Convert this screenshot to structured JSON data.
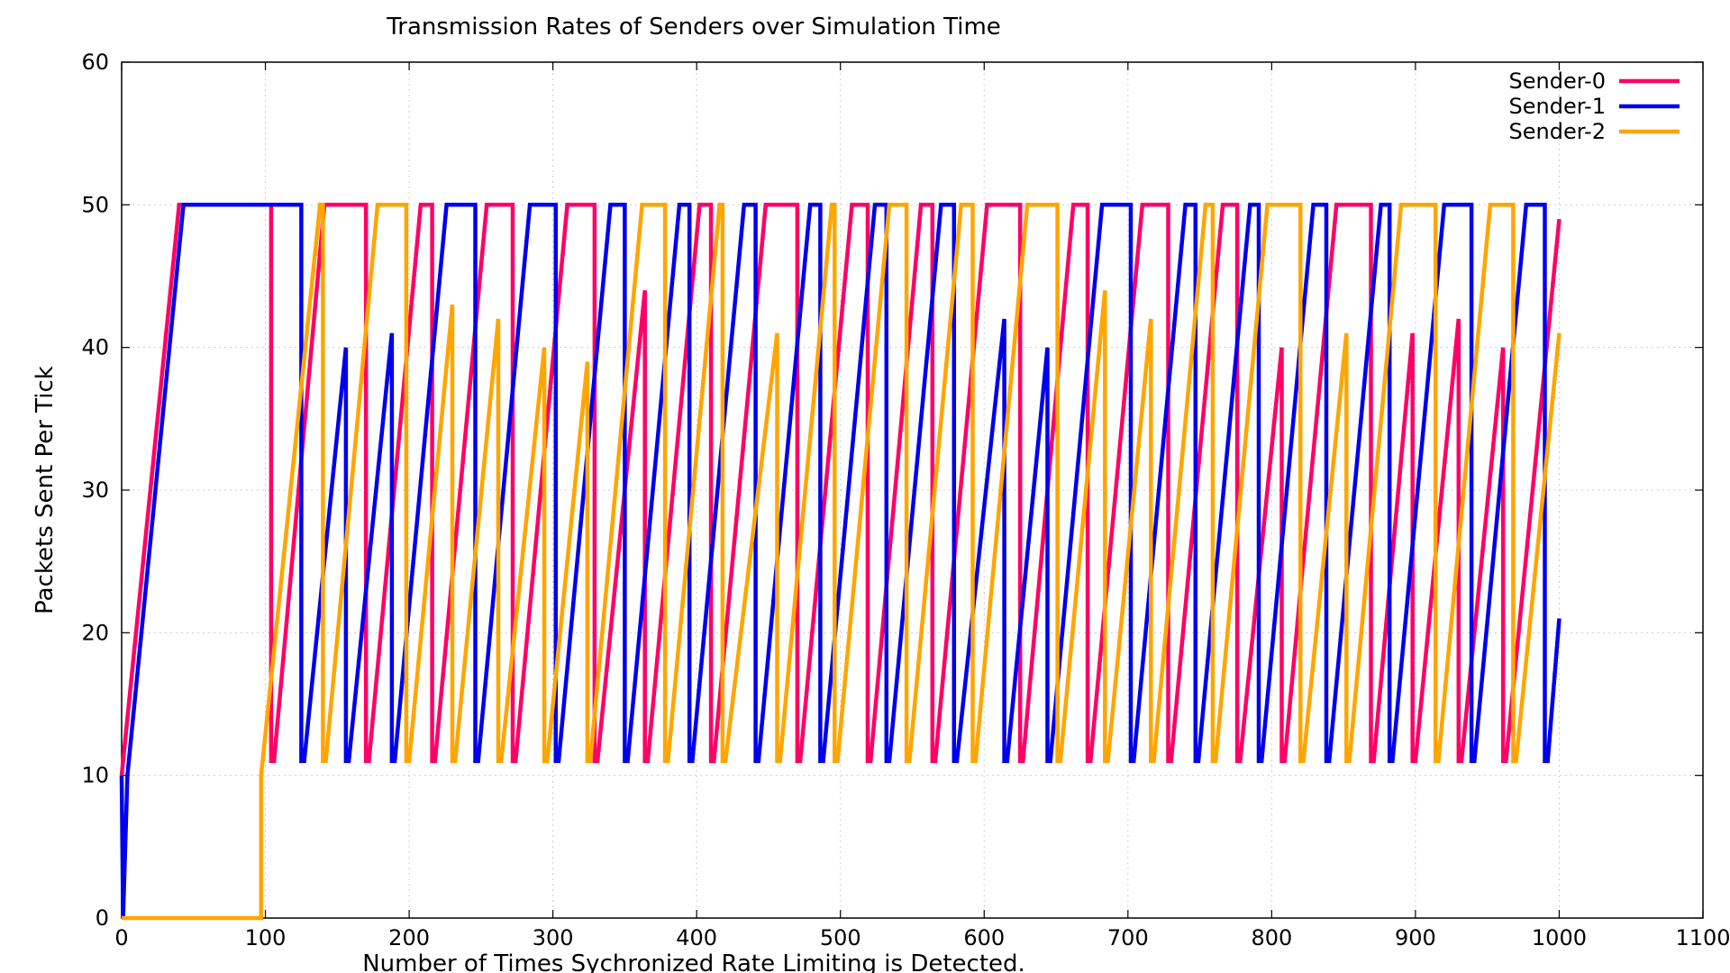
{
  "chart_data": {
    "type": "line",
    "title": "Transmission Rates of Senders over Simulation Time",
    "xlabel": "Number of Times Sychronized Rate Limiting is Detected.",
    "ylabel": "Packets Sent Per Tick",
    "xlim": [
      0,
      1100
    ],
    "ylim": [
      0,
      60
    ],
    "xticks": [
      0,
      100,
      200,
      300,
      400,
      500,
      600,
      700,
      800,
      900,
      1000,
      1100
    ],
    "yticks": [
      0,
      10,
      20,
      30,
      40,
      50,
      60
    ],
    "grid": true,
    "legend_position": "top-right",
    "colors": {
      "sender0": "#ff0066",
      "sender1": "#0000ee",
      "sender2": "#ffa500"
    },
    "series": [
      {
        "name": "Sender-0",
        "color": "#ff0066",
        "points": [
          [
            0,
            10
          ],
          [
            40,
            50
          ],
          [
            104,
            50
          ],
          [
            104,
            11
          ],
          [
            106,
            11
          ],
          [
            141,
            50
          ],
          [
            170,
            50
          ],
          [
            170,
            11
          ],
          [
            172,
            11
          ],
          [
            208,
            50
          ],
          [
            216,
            50
          ],
          [
            216,
            11
          ],
          [
            218,
            11
          ],
          [
            254,
            50
          ],
          [
            272,
            50
          ],
          [
            272,
            11
          ],
          [
            274,
            11
          ],
          [
            310,
            50
          ],
          [
            329,
            50
          ],
          [
            329,
            11
          ],
          [
            331,
            11
          ],
          [
            364,
            44
          ],
          [
            364,
            11
          ],
          [
            366,
            11
          ],
          [
            402,
            50
          ],
          [
            410,
            50
          ],
          [
            410,
            11
          ],
          [
            412,
            11
          ],
          [
            448,
            50
          ],
          [
            470,
            50
          ],
          [
            470,
            11
          ],
          [
            472,
            11
          ],
          [
            508,
            50
          ],
          [
            519,
            50
          ],
          [
            519,
            11
          ],
          [
            521,
            11
          ],
          [
            556,
            50
          ],
          [
            564,
            50
          ],
          [
            564,
            11
          ],
          [
            566,
            11
          ],
          [
            602,
            50
          ],
          [
            625,
            50
          ],
          [
            625,
            11
          ],
          [
            627,
            11
          ],
          [
            662,
            50
          ],
          [
            672,
            50
          ],
          [
            672,
            11
          ],
          [
            674,
            11
          ],
          [
            710,
            50
          ],
          [
            728,
            50
          ],
          [
            728,
            11
          ],
          [
            730,
            11
          ],
          [
            766,
            50
          ],
          [
            776,
            50
          ],
          [
            776,
            11
          ],
          [
            778,
            11
          ],
          [
            807,
            40
          ],
          [
            807,
            11
          ],
          [
            809,
            11
          ],
          [
            845,
            50
          ],
          [
            869,
            50
          ],
          [
            869,
            11
          ],
          [
            871,
            11
          ],
          [
            898,
            41
          ],
          [
            898,
            11
          ],
          [
            900,
            11
          ],
          [
            930,
            42
          ],
          [
            930,
            11
          ],
          [
            932,
            11
          ],
          [
            961,
            40
          ],
          [
            961,
            11
          ],
          [
            963,
            11
          ],
          [
            1000,
            49
          ]
        ]
      },
      {
        "name": "Sender-1",
        "color": "#0000ee",
        "points": [
          [
            0,
            10
          ],
          [
            1,
            0
          ],
          [
            4,
            10
          ],
          [
            43,
            50
          ],
          [
            125,
            50
          ],
          [
            125,
            11
          ],
          [
            127,
            11
          ],
          [
            156,
            40
          ],
          [
            156,
            11
          ],
          [
            158,
            11
          ],
          [
            188,
            41
          ],
          [
            188,
            11
          ],
          [
            190,
            11
          ],
          [
            226,
            50
          ],
          [
            246,
            50
          ],
          [
            246,
            11
          ],
          [
            248,
            11
          ],
          [
            284,
            50
          ],
          [
            302,
            50
          ],
          [
            302,
            11
          ],
          [
            304,
            11
          ],
          [
            340,
            50
          ],
          [
            350,
            50
          ],
          [
            350,
            11
          ],
          [
            352,
            11
          ],
          [
            388,
            50
          ],
          [
            395,
            50
          ],
          [
            395,
            11
          ],
          [
            397,
            11
          ],
          [
            433,
            50
          ],
          [
            441,
            50
          ],
          [
            441,
            11
          ],
          [
            443,
            11
          ],
          [
            479,
            50
          ],
          [
            486,
            50
          ],
          [
            486,
            11
          ],
          [
            488,
            11
          ],
          [
            524,
            50
          ],
          [
            532,
            50
          ],
          [
            532,
            11
          ],
          [
            534,
            11
          ],
          [
            570,
            50
          ],
          [
            579,
            50
          ],
          [
            579,
            11
          ],
          [
            581,
            11
          ],
          [
            614,
            42
          ],
          [
            614,
            11
          ],
          [
            616,
            11
          ],
          [
            644,
            40
          ],
          [
            644,
            11
          ],
          [
            646,
            11
          ],
          [
            682,
            50
          ],
          [
            702,
            50
          ],
          [
            702,
            11
          ],
          [
            704,
            11
          ],
          [
            740,
            50
          ],
          [
            747,
            50
          ],
          [
            747,
            11
          ],
          [
            749,
            11
          ],
          [
            785,
            50
          ],
          [
            791,
            50
          ],
          [
            791,
            11
          ],
          [
            793,
            11
          ],
          [
            829,
            50
          ],
          [
            838,
            50
          ],
          [
            838,
            11
          ],
          [
            840,
            11
          ],
          [
            876,
            50
          ],
          [
            882,
            50
          ],
          [
            882,
            11
          ],
          [
            884,
            11
          ],
          [
            920,
            50
          ],
          [
            939,
            50
          ],
          [
            939,
            11
          ],
          [
            941,
            11
          ],
          [
            977,
            50
          ],
          [
            990,
            50
          ],
          [
            990,
            11
          ],
          [
            992,
            11
          ],
          [
            1000,
            21
          ]
        ]
      },
      {
        "name": "Sender-2",
        "color": "#ffa500",
        "points": [
          [
            0,
            0
          ],
          [
            97,
            0
          ],
          [
            97,
            10
          ],
          [
            138,
            50
          ],
          [
            140,
            50
          ],
          [
            140,
            11
          ],
          [
            142,
            11
          ],
          [
            178,
            50
          ],
          [
            198,
            50
          ],
          [
            198,
            11
          ],
          [
            200,
            11
          ],
          [
            230,
            43
          ],
          [
            230,
            11
          ],
          [
            232,
            11
          ],
          [
            262,
            42
          ],
          [
            262,
            11
          ],
          [
            264,
            11
          ],
          [
            294,
            40
          ],
          [
            294,
            11
          ],
          [
            296,
            11
          ],
          [
            324,
            39
          ],
          [
            324,
            11
          ],
          [
            326,
            11
          ],
          [
            362,
            50
          ],
          [
            378,
            50
          ],
          [
            378,
            11
          ],
          [
            380,
            11
          ],
          [
            416,
            50
          ],
          [
            418,
            50
          ],
          [
            418,
            11
          ],
          [
            420,
            11
          ],
          [
            456,
            41
          ],
          [
            456,
            11
          ],
          [
            458,
            11
          ],
          [
            494,
            50
          ],
          [
            496,
            50
          ],
          [
            496,
            11
          ],
          [
            498,
            11
          ],
          [
            534,
            50
          ],
          [
            546,
            50
          ],
          [
            546,
            11
          ],
          [
            548,
            11
          ],
          [
            584,
            50
          ],
          [
            592,
            50
          ],
          [
            592,
            11
          ],
          [
            594,
            11
          ],
          [
            630,
            50
          ],
          [
            651,
            50
          ],
          [
            651,
            11
          ],
          [
            653,
            11
          ],
          [
            684,
            44
          ],
          [
            684,
            11
          ],
          [
            686,
            11
          ],
          [
            716,
            42
          ],
          [
            716,
            11
          ],
          [
            718,
            11
          ],
          [
            754,
            50
          ],
          [
            759,
            50
          ],
          [
            759,
            11
          ],
          [
            761,
            11
          ],
          [
            797,
            50
          ],
          [
            820,
            50
          ],
          [
            820,
            11
          ],
          [
            822,
            11
          ],
          [
            852,
            41
          ],
          [
            852,
            11
          ],
          [
            854,
            11
          ],
          [
            890,
            50
          ],
          [
            914,
            50
          ],
          [
            914,
            11
          ],
          [
            916,
            11
          ],
          [
            952,
            50
          ],
          [
            968,
            50
          ],
          [
            968,
            11
          ],
          [
            970,
            11
          ],
          [
            1000,
            41
          ]
        ]
      }
    ]
  }
}
